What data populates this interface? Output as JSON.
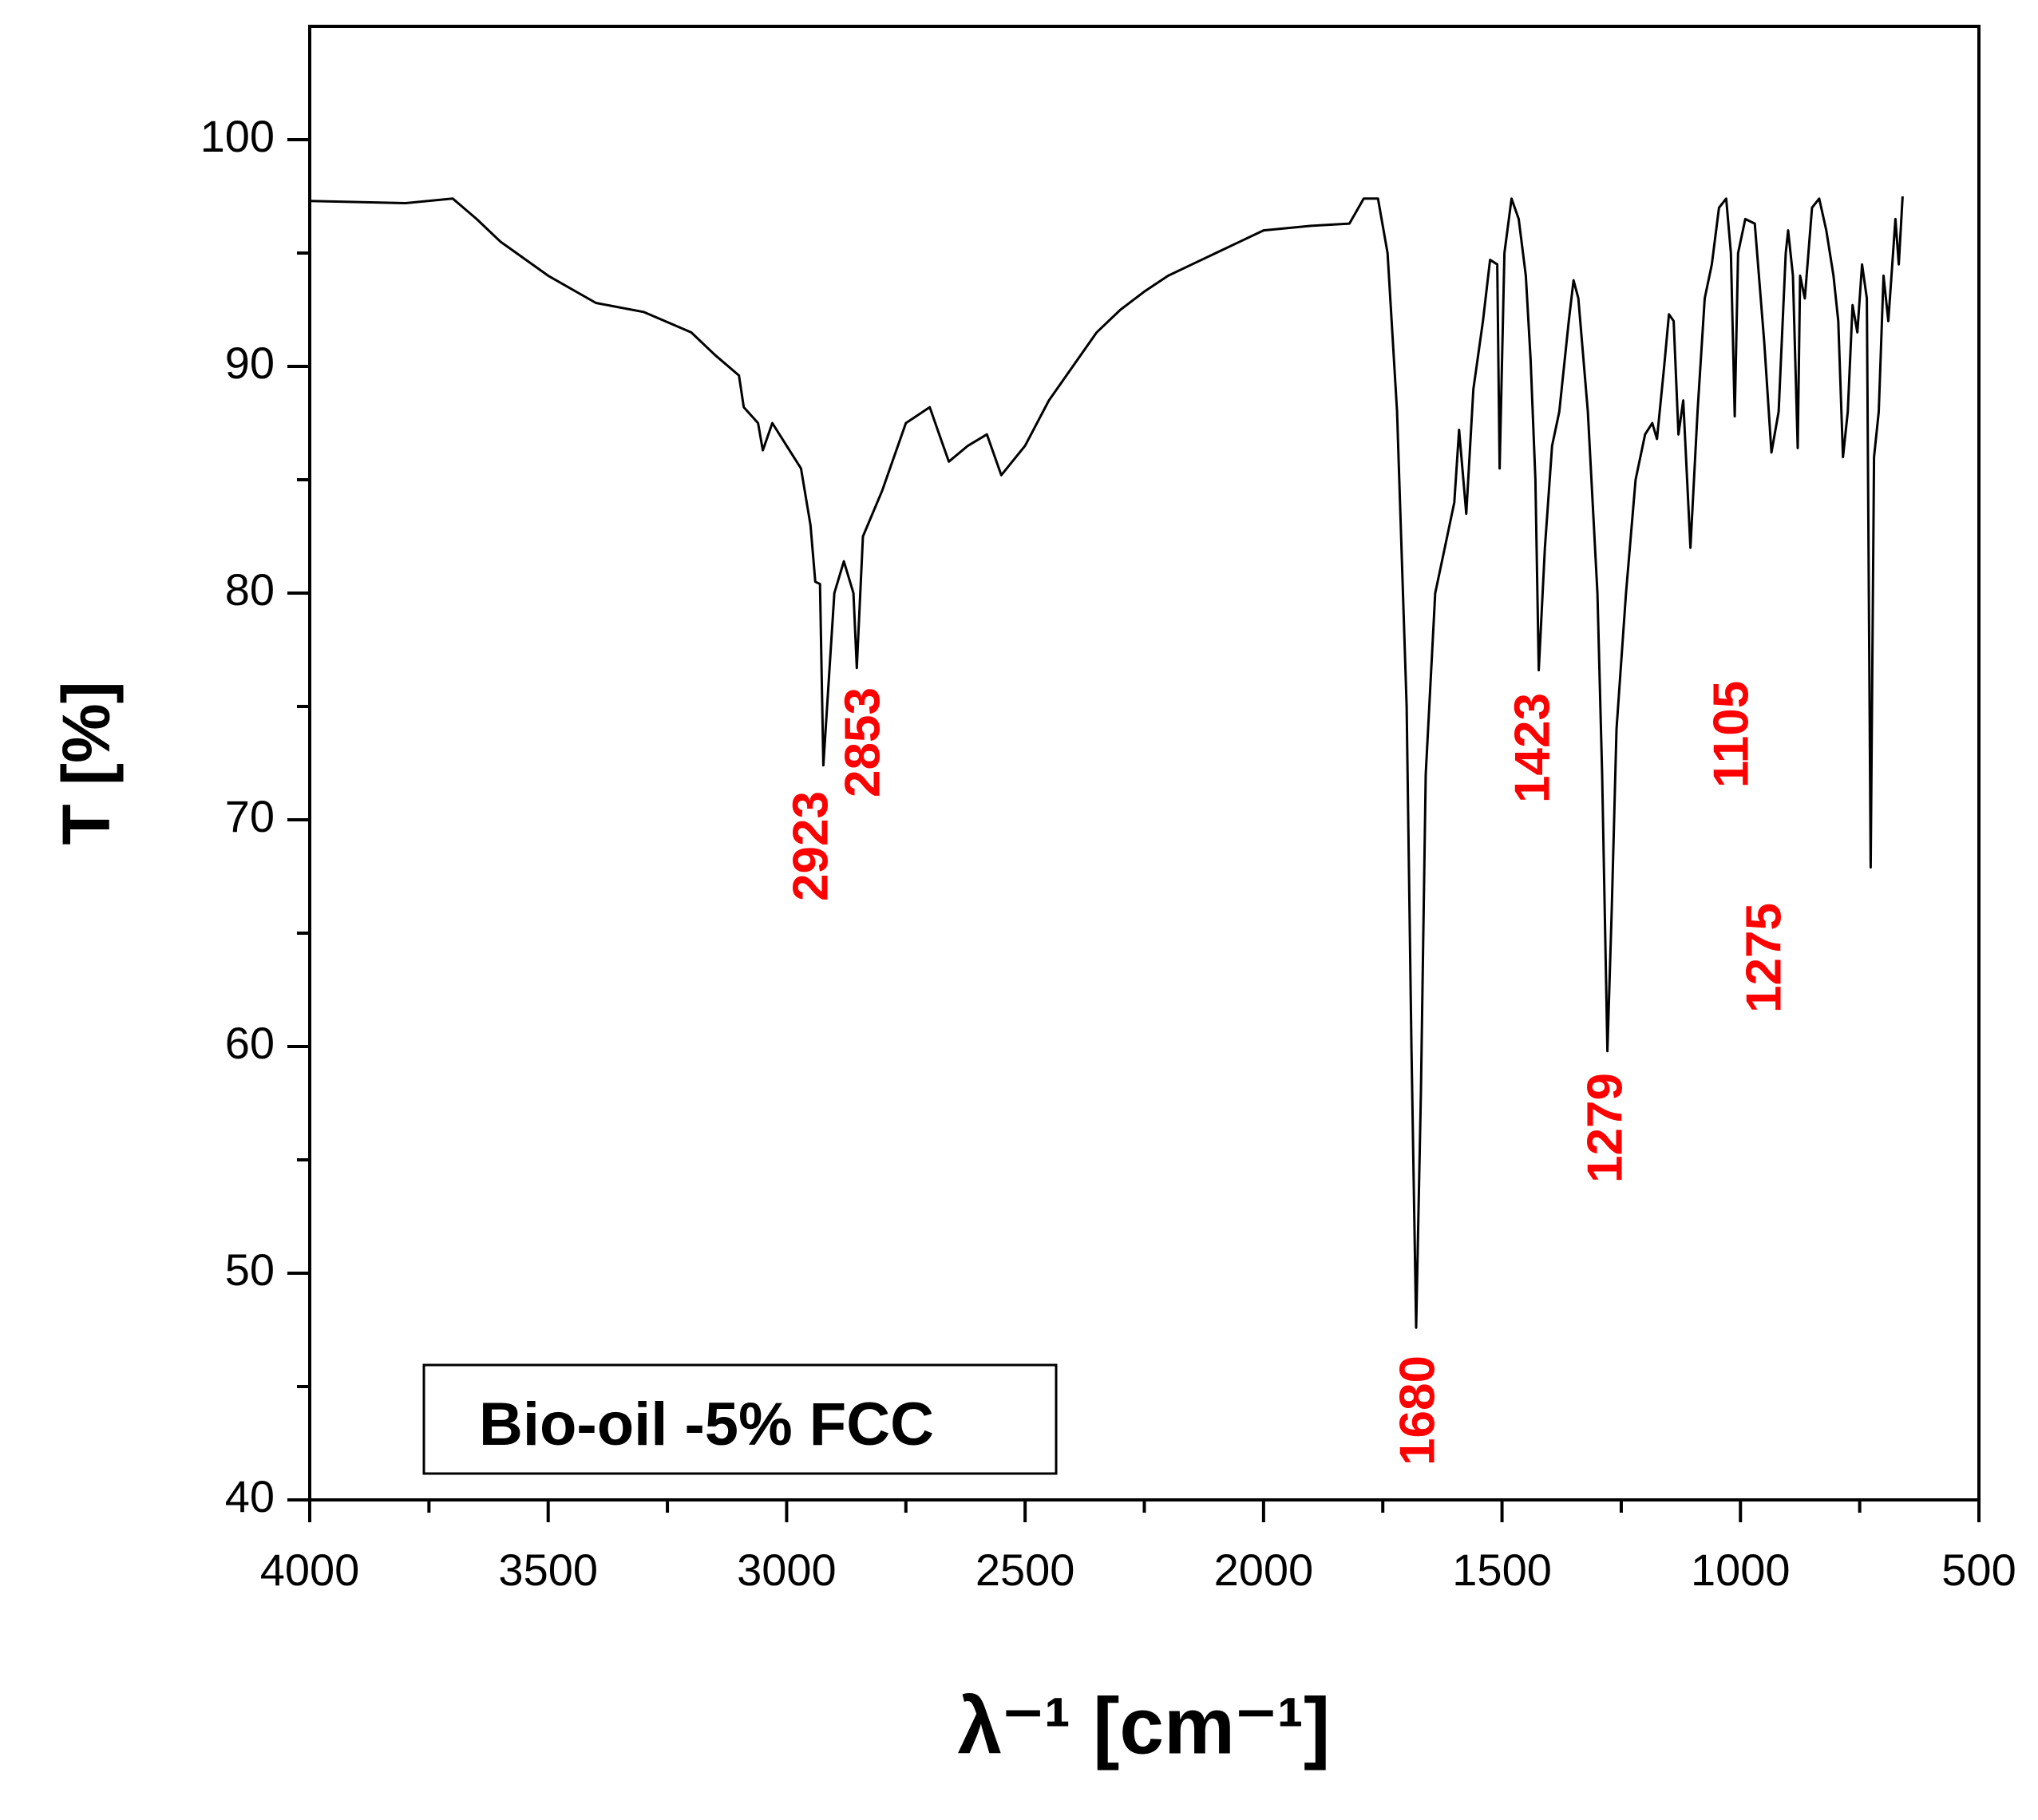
{
  "chart_data": {
    "type": "line",
    "xlabel": "λ⁻¹ [cm⁻¹]",
    "ylabel": "T [%]",
    "xlim": [
      4000,
      500
    ],
    "ylim": [
      40,
      105
    ],
    "xticks": [
      4000,
      3500,
      3000,
      2500,
      2000,
      1500,
      1000,
      500
    ],
    "yticks": [
      40,
      50,
      60,
      70,
      80,
      90,
      100
    ],
    "annotations": [
      "2923",
      "2853",
      "1680",
      "1423",
      "1279",
      "1105",
      "1275"
    ],
    "annotation_color": "#ff0000",
    "series": [
      {
        "name": "Bio-oil -5% FCC",
        "color": "#000000",
        "x": [
          4000,
          3800,
          3700,
          3650,
          3600,
          3500,
          3400,
          3300,
          3200,
          3150,
          3100,
          3090,
          3060,
          3050,
          3030,
          3000,
          2970,
          2950,
          2940,
          2930,
          2923,
          2900,
          2880,
          2860,
          2853,
          2840,
          2800,
          2750,
          2700,
          2680,
          2660,
          2620,
          2580,
          2550,
          2500,
          2450,
          2400,
          2350,
          2300,
          2250,
          2200,
          2150,
          2100,
          2050,
          2000,
          1900,
          1820,
          1790,
          1760,
          1740,
          1720,
          1700,
          1690,
          1680,
          1670,
          1660,
          1640,
          1620,
          1600,
          1590,
          1575,
          1560,
          1540,
          1525,
          1510,
          1505,
          1495,
          1480,
          1465,
          1450,
          1440,
          1430,
          1423,
          1410,
          1395,
          1380,
          1360,
          1350,
          1340,
          1320,
          1300,
          1290,
          1279,
          1270,
          1260,
          1240,
          1220,
          1200,
          1185,
          1175,
          1160,
          1150,
          1140,
          1130,
          1120,
          1105,
          1090,
          1075,
          1060,
          1045,
          1030,
          1020,
          1012,
          1005,
          990,
          970,
          950,
          935,
          920,
          905,
          900,
          890,
          880,
          875,
          865,
          850,
          835,
          820,
          805,
          795,
          785,
          775,
          765,
          755,
          745,
          735,
          727,
          720,
          710,
          700,
          690,
          675,
          668,
          660
        ],
        "values": [
          97.3,
          97.2,
          97.4,
          96.5,
          95.5,
          94,
          92.8,
          92.4,
          91.5,
          90.5,
          89.6,
          88.2,
          87.5,
          86.3,
          87.5,
          86.5,
          85.5,
          83,
          80.5,
          80.4,
          72.4,
          80,
          81.4,
          80,
          76.7,
          82.5,
          84.5,
          87.5,
          88.2,
          87,
          85.8,
          86.5,
          87,
          85.2,
          86.5,
          88.5,
          90,
          91.5,
          92.5,
          93.3,
          94,
          94.5,
          95,
          95.5,
          96,
          96.2,
          96.3,
          97.4,
          97.4,
          95,
          88,
          75,
          60,
          47.6,
          58,
          72,
          80,
          82,
          84,
          87.2,
          83.5,
          89,
          92,
          94.7,
          94.5,
          85.5,
          95,
          97.4,
          96.5,
          94,
          90.3,
          85,
          76.6,
          82,
          86.5,
          88,
          92,
          93.8,
          93,
          88,
          80,
          72,
          59.8,
          66,
          74,
          80,
          85,
          87,
          87.5,
          86.8,
          90,
          92.3,
          92,
          87,
          88.5,
          82,
          88,
          93,
          94.5,
          97,
          97.4,
          95,
          87.8,
          95,
          96.5,
          96.3,
          91,
          86.2,
          88,
          95,
          96,
          94,
          86.4,
          94,
          93,
          97,
          97.4,
          96,
          94,
          92,
          86,
          88,
          92.7,
          91.5,
          94.5,
          93,
          67.9,
          86,
          88,
          94,
          92,
          96.5,
          94.5,
          97.5
        ]
      }
    ]
  }
}
